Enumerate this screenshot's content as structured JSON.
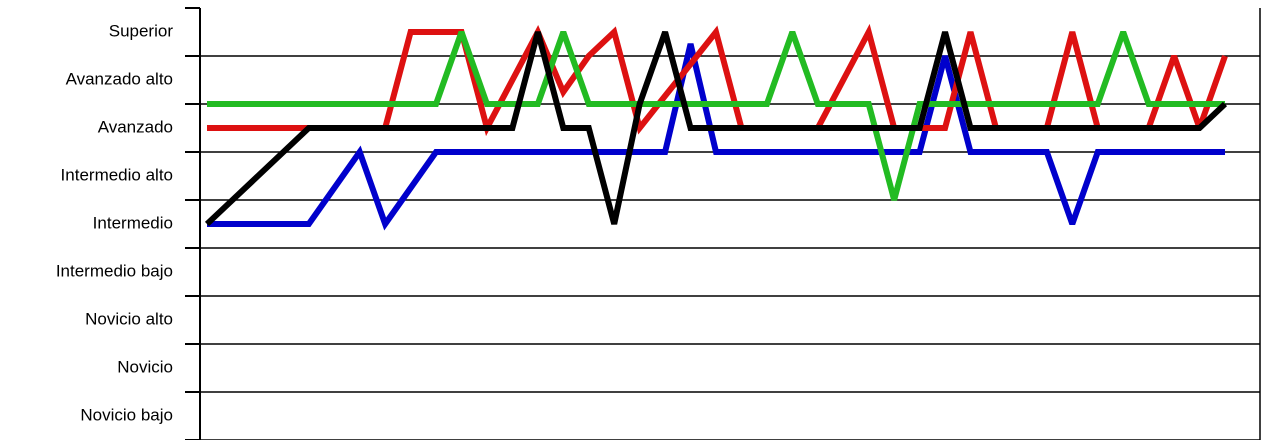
{
  "chart_data": {
    "type": "line",
    "categories": [
      null,
      null,
      null,
      null,
      null,
      null,
      null,
      null,
      null,
      null,
      null,
      null,
      null,
      null,
      null,
      null,
      null,
      null,
      null,
      null,
      null,
      null,
      null,
      null,
      null,
      null,
      null,
      null,
      null,
      null,
      null,
      null,
      null,
      null,
      null,
      null,
      null,
      null,
      null,
      null,
      null
    ],
    "series": [
      {
        "color": "#0000cc",
        "values": [
          5,
          5,
          5,
          5,
          5,
          5.75,
          6.5,
          5,
          5.75,
          6.5,
          6.5,
          6.5,
          6.5,
          6.5,
          6.5,
          6.5,
          6.5,
          6.5,
          6.5,
          8.75,
          6.5,
          6.5,
          6.5,
          6.5,
          6.5,
          6.5,
          6.5,
          6.5,
          6.5,
          8.5,
          6.5,
          6.5,
          6.5,
          6.5,
          5,
          6.5,
          6.5,
          6.5,
          6.5,
          6.5,
          6.5
        ]
      },
      {
        "color": "#dd1111",
        "values": [
          7,
          7,
          7,
          7,
          7,
          7,
          7,
          7,
          9,
          9,
          9,
          7,
          8,
          9,
          7.75,
          8.5,
          9,
          7,
          7.67,
          8.33,
          9,
          7,
          7,
          7,
          7,
          8,
          9,
          7,
          7,
          7,
          9,
          7,
          7,
          7,
          9,
          7,
          7,
          7,
          8.5,
          7,
          8.5
        ]
      },
      {
        "color": "#22bb22",
        "values": [
          7.5,
          7.5,
          7.5,
          7.5,
          7.5,
          7.5,
          7.5,
          7.5,
          7.5,
          7.5,
          9,
          7.5,
          7.5,
          7.5,
          9,
          7.5,
          7.5,
          7.5,
          7.5,
          7.5,
          7.5,
          7.5,
          7.5,
          9,
          7.5,
          7.5,
          7.5,
          5.5,
          7.5,
          7.5,
          7.5,
          7.5,
          7.5,
          7.5,
          7.5,
          7.5,
          9,
          7.5,
          7.5,
          7.5,
          7.5
        ]
      },
      {
        "color": "#000000",
        "values": [
          5,
          5.5,
          6,
          6.5,
          7,
          7,
          7,
          7,
          7,
          7,
          7,
          7,
          7,
          9,
          7,
          7,
          5,
          7.5,
          9,
          7,
          7,
          7,
          7,
          7,
          7,
          7,
          7,
          7,
          7,
          9,
          7,
          7,
          7,
          7,
          7,
          7,
          7,
          7,
          7,
          7,
          7.5
        ]
      }
    ],
    "ylim": [
      0.5,
      9.5
    ],
    "yticks": [
      {
        "value": 9,
        "label": "Superior"
      },
      {
        "value": 8,
        "label": "Avanzado alto"
      },
      {
        "value": 7,
        "label": "Avanzado"
      },
      {
        "value": 6,
        "label": "Intermedio alto"
      },
      {
        "value": 5,
        "label": "Intermedio"
      },
      {
        "value": 4,
        "label": "Intermedio bajo"
      },
      {
        "value": 3,
        "label": "Novicio alto"
      },
      {
        "value": 2,
        "label": "Novicio"
      },
      {
        "value": 1,
        "label": "Novicio bajo"
      }
    ],
    "grid": true
  }
}
